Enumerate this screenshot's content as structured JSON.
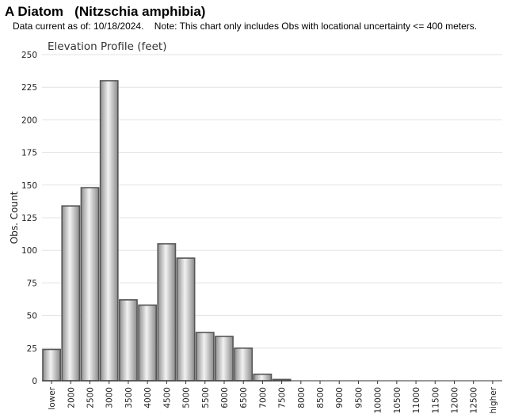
{
  "header": {
    "title": "A Diatom   (Nitzschia amphibia)",
    "note": "Data current as of: 10/18/2024.    Note: This chart only includes Obs with locational uncertainty <= 400 meters."
  },
  "chart_data": {
    "type": "bar",
    "title": "Elevation Profile (feet)",
    "xlabel": "",
    "ylabel": "Obs. Count",
    "ylim": [
      0,
      250
    ],
    "yticks": [
      0,
      25,
      50,
      75,
      100,
      125,
      150,
      175,
      200,
      225,
      250
    ],
    "grid": true,
    "categories": [
      "lower",
      "2000",
      "2500",
      "3000",
      "3500",
      "4000",
      "4500",
      "5000",
      "5500",
      "6000",
      "6500",
      "7000",
      "7500",
      "8000",
      "8500",
      "9000",
      "9500",
      "10000",
      "10500",
      "11000",
      "11500",
      "12000",
      "12500",
      "higher"
    ],
    "values": [
      24,
      134,
      148,
      230,
      62,
      58,
      105,
      94,
      37,
      34,
      25,
      5,
      1,
      0,
      0,
      0,
      0,
      0,
      0,
      0,
      0,
      0,
      0,
      0
    ],
    "bar_color": "#c8c8c8",
    "bar_edge_color": "#555555"
  }
}
